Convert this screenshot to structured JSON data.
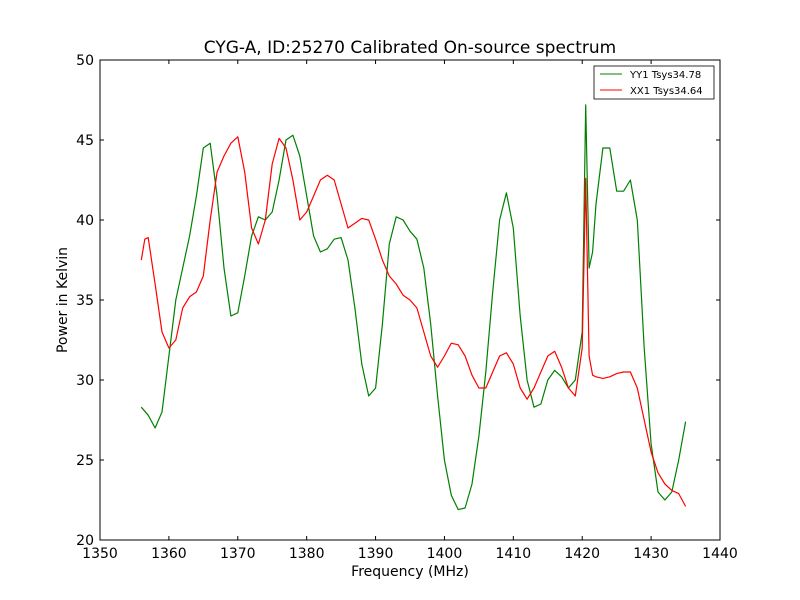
{
  "chart_data": {
    "type": "line",
    "title": "CYG-A, ID:25270 Calibrated On-source spectrum",
    "xlabel": "Frequency (MHz)",
    "ylabel": "Power in Kelvin",
    "xlim": [
      1350,
      1440
    ],
    "ylim": [
      20,
      50
    ],
    "xticks": [
      "1350",
      "1360",
      "1370",
      "1380",
      "1390",
      "1400",
      "1410",
      "1420",
      "1430",
      "1440"
    ],
    "yticks": [
      "20",
      "25",
      "30",
      "35",
      "40",
      "45",
      "50"
    ],
    "grid": false,
    "legend_position": "top-right",
    "series": [
      {
        "name": "YY1 Tsys34.78",
        "color": "#008000",
        "x": [
          1356,
          1357,
          1358,
          1359,
          1360,
          1361,
          1362,
          1363,
          1364,
          1365,
          1366,
          1367,
          1368,
          1369,
          1370,
          1371,
          1372,
          1373,
          1374,
          1375,
          1376,
          1377,
          1378,
          1379,
          1380,
          1381,
          1382,
          1383,
          1384,
          1385,
          1386,
          1387,
          1388,
          1389,
          1390,
          1391,
          1392,
          1393,
          1394,
          1395,
          1396,
          1397,
          1398,
          1399,
          1400,
          1401,
          1402,
          1403,
          1404,
          1405,
          1406,
          1407,
          1408,
          1409,
          1410,
          1411,
          1412,
          1413,
          1414,
          1415,
          1416,
          1417,
          1418,
          1419,
          1420,
          1420.5,
          1421,
          1421.5,
          1422,
          1423,
          1424,
          1425,
          1426,
          1427,
          1428,
          1429,
          1430,
          1431,
          1432,
          1433,
          1434,
          1435
        ],
        "y": [
          28.3,
          27.8,
          27.0,
          28.0,
          31.5,
          35.0,
          37.0,
          39.0,
          41.5,
          44.5,
          44.8,
          41.5,
          37.0,
          34.0,
          34.2,
          36.5,
          39.0,
          40.2,
          40.0,
          40.5,
          42.5,
          45.0,
          45.3,
          44.0,
          41.5,
          39.0,
          38.0,
          38.2,
          38.8,
          38.9,
          37.5,
          34.5,
          31.0,
          29.0,
          29.5,
          33.5,
          38.5,
          40.2,
          40.0,
          39.3,
          38.8,
          37.0,
          33.5,
          29.0,
          25.0,
          22.8,
          21.9,
          22.0,
          23.5,
          26.5,
          30.5,
          35.5,
          40.0,
          41.7,
          39.5,
          34.0,
          30.0,
          28.3,
          28.5,
          30.0,
          30.6,
          30.2,
          29.5,
          30.0,
          33.0,
          47.2,
          37.0,
          38.0,
          41.0,
          44.5,
          44.5,
          41.8,
          41.8,
          42.5,
          40.0,
          32.0,
          26.0,
          23.0,
          22.5,
          23.0,
          25.0,
          27.4
        ]
      },
      {
        "name": "XX1 Tsys34.64",
        "color": "#ff0000",
        "x": [
          1356,
          1356.5,
          1357,
          1358,
          1359,
          1360,
          1361,
          1362,
          1363,
          1364,
          1365,
          1366,
          1367,
          1368,
          1369,
          1370,
          1371,
          1372,
          1373,
          1374,
          1375,
          1376,
          1377,
          1378,
          1379,
          1380,
          1381,
          1382,
          1383,
          1384,
          1385,
          1386,
          1387,
          1388,
          1389,
          1390,
          1391,
          1392,
          1393,
          1394,
          1395,
          1396,
          1397,
          1398,
          1399,
          1400,
          1401,
          1402,
          1403,
          1404,
          1405,
          1406,
          1407,
          1408,
          1409,
          1410,
          1411,
          1412,
          1413,
          1414,
          1415,
          1416,
          1417,
          1418,
          1419,
          1420,
          1420.5,
          1421,
          1421.5,
          1422,
          1423,
          1424,
          1425,
          1426,
          1427,
          1428,
          1429,
          1430,
          1431,
          1432,
          1433,
          1434,
          1435
        ],
        "y": [
          37.5,
          38.8,
          38.9,
          36.0,
          33.0,
          32.0,
          32.5,
          34.5,
          35.2,
          35.5,
          36.5,
          40.0,
          43.0,
          44.0,
          44.8,
          45.2,
          43.0,
          39.5,
          38.5,
          40.0,
          43.5,
          45.1,
          44.5,
          42.5,
          40.0,
          40.5,
          41.5,
          42.5,
          42.8,
          42.5,
          41.0,
          39.5,
          39.8,
          40.1,
          40.0,
          38.8,
          37.5,
          36.5,
          36.0,
          35.3,
          35.0,
          34.5,
          33.0,
          31.5,
          30.8,
          31.5,
          32.3,
          32.2,
          31.5,
          30.3,
          29.5,
          29.5,
          30.5,
          31.5,
          31.7,
          31.0,
          29.5,
          28.8,
          29.5,
          30.5,
          31.5,
          31.8,
          30.8,
          29.5,
          29.0,
          32.0,
          42.6,
          31.5,
          30.3,
          30.2,
          30.1,
          30.2,
          30.4,
          30.5,
          30.5,
          29.5,
          27.5,
          25.5,
          24.2,
          23.5,
          23.1,
          22.9,
          22.1
        ]
      }
    ]
  }
}
